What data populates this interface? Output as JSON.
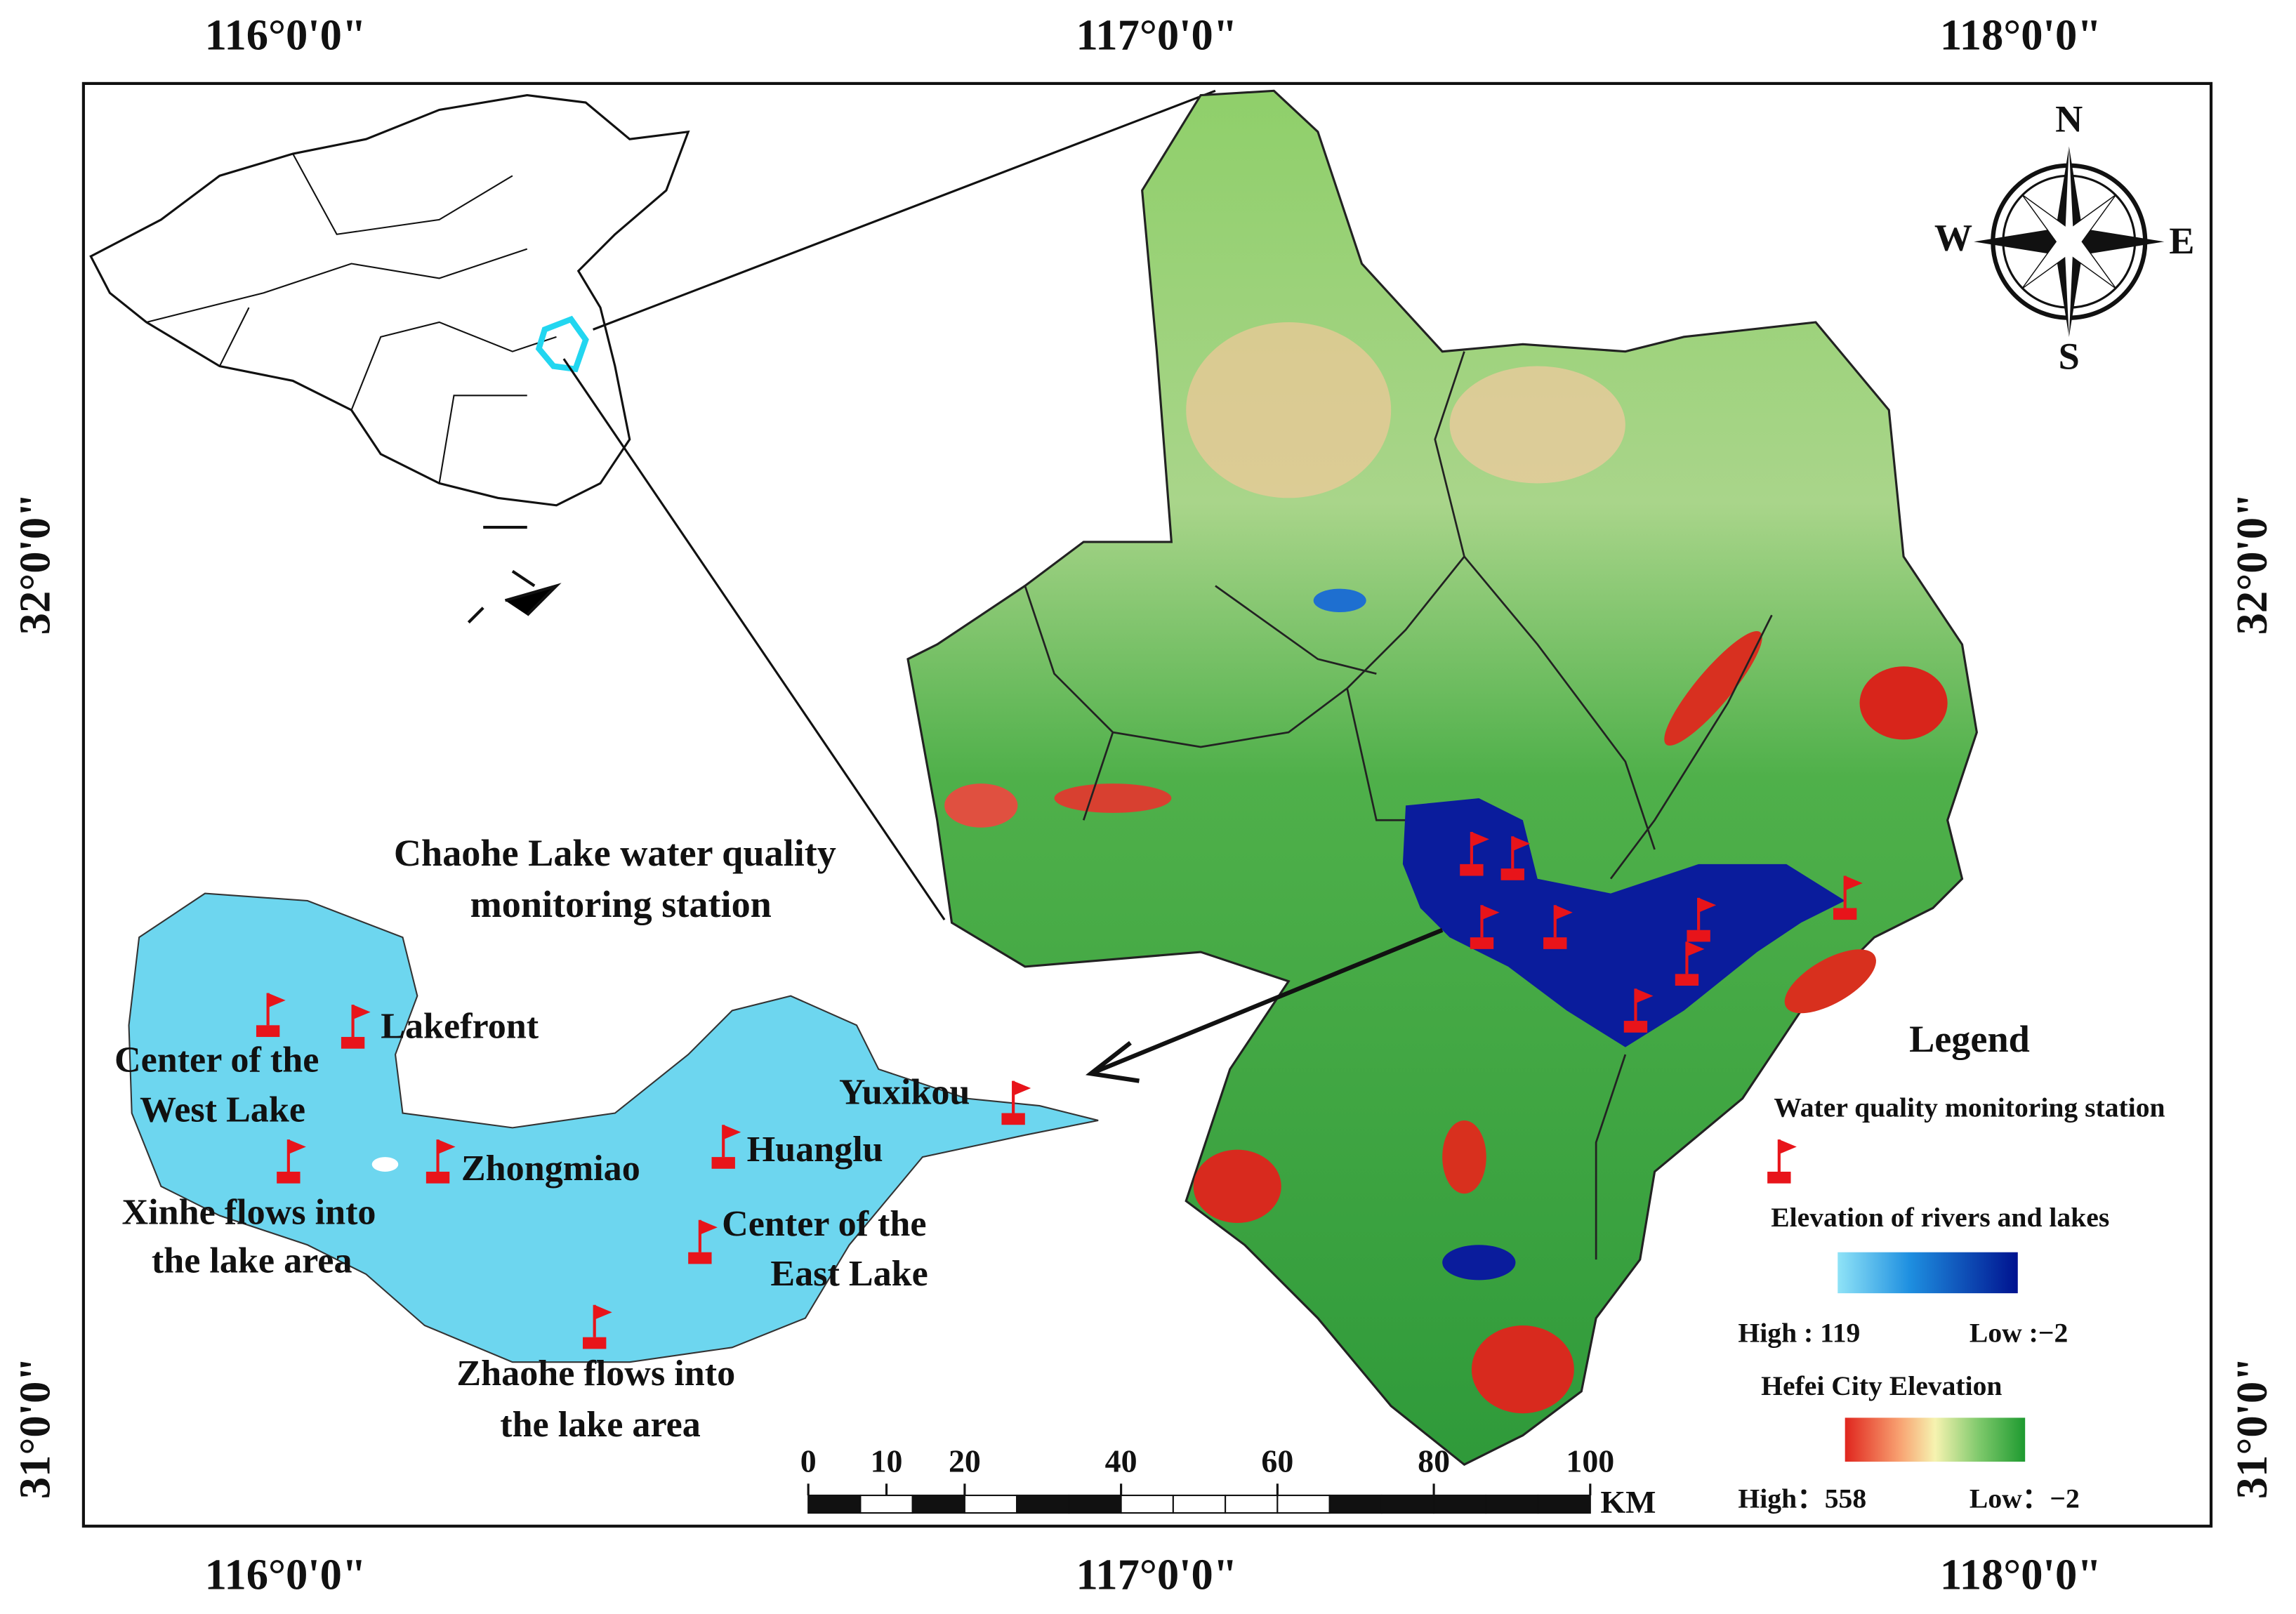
{
  "map": {
    "lon_labels": [
      "116°0'0\"",
      "117°0'0\"",
      "118°0'0\""
    ],
    "lat_labels": [
      "32°0'0\"",
      "31°0'0\""
    ],
    "compass": {
      "n": "N",
      "s": "S",
      "e": "E",
      "w": "W"
    },
    "inset_title": [
      "Chaohe Lake water quality",
      "monitoring station"
    ],
    "stations": [
      {
        "lines": [
          "Center of the",
          "West Lake"
        ]
      },
      {
        "lines": [
          "Lakefront"
        ]
      },
      {
        "lines": [
          "Xinhe flows into",
          "the lake area"
        ]
      },
      {
        "lines": [
          "Zhongmiao"
        ]
      },
      {
        "lines": [
          "Huanglu"
        ]
      },
      {
        "lines": [
          "Center of the",
          "East Lake"
        ]
      },
      {
        "lines": [
          "Zhaohe flows into",
          "the lake area"
        ]
      },
      {
        "lines": [
          "Yuxikou"
        ]
      }
    ],
    "legend": {
      "title": "Legend",
      "station": "Water quality monitoring station",
      "rivers_title": "Elevation of rivers and lakes",
      "rivers_high": "High : 119",
      "rivers_low": "Low :−2",
      "city_title": "Hefei City Elevation",
      "city_high": "High：558",
      "city_low": "Low：−2"
    },
    "scale": {
      "ticks": [
        0,
        10,
        20,
        40,
        60,
        80,
        100
      ],
      "unit": "KM"
    }
  }
}
